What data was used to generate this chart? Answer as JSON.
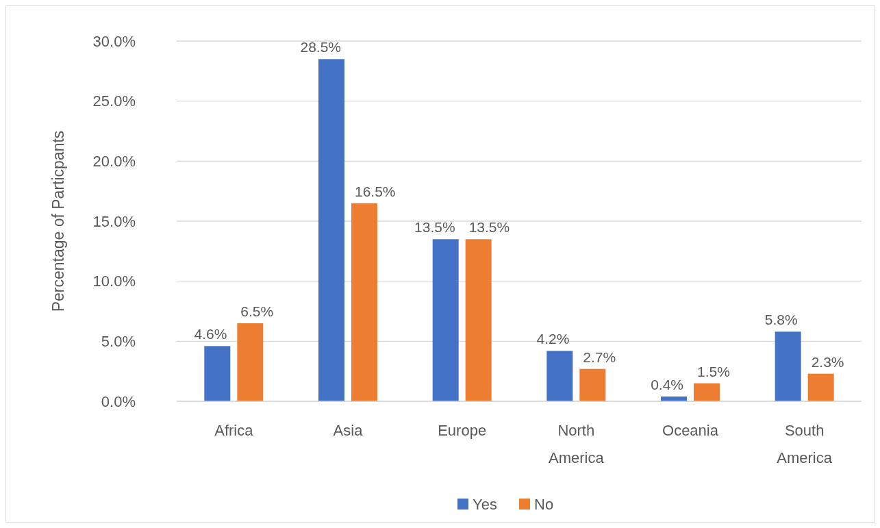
{
  "chart_data": {
    "type": "bar",
    "ylabel": "Percentage of Particpants",
    "categories": [
      "Africa",
      "Asia",
      "Europe",
      "North America",
      "Oceania",
      "South America"
    ],
    "series": [
      {
        "name": "Yes",
        "color": "#4472c4",
        "values": [
          4.6,
          28.5,
          13.5,
          4.2,
          0.4,
          5.8
        ],
        "value_labels": [
          "4.6%",
          "28.5%",
          "13.5%",
          "4.2%",
          "0.4%",
          "5.8%"
        ]
      },
      {
        "name": "No",
        "color": "#ed7d31",
        "values": [
          6.5,
          16.5,
          13.5,
          2.7,
          1.5,
          2.3
        ],
        "value_labels": [
          "6.5%",
          "16.5%",
          "13.5%",
          "2.7%",
          "1.5%",
          "2.3%"
        ]
      }
    ],
    "ylim": [
      0,
      30
    ],
    "yticks": [
      {
        "value": 0,
        "label": "0.0%"
      },
      {
        "value": 5,
        "label": "5.0%"
      },
      {
        "value": 10,
        "label": "10.0%"
      },
      {
        "value": 15,
        "label": "15.0%"
      },
      {
        "value": 20,
        "label": "20.0%"
      },
      {
        "value": 25,
        "label": "25.0%"
      },
      {
        "value": 30,
        "label": "30.0%"
      }
    ],
    "grid": "y",
    "legend": "bottom"
  }
}
